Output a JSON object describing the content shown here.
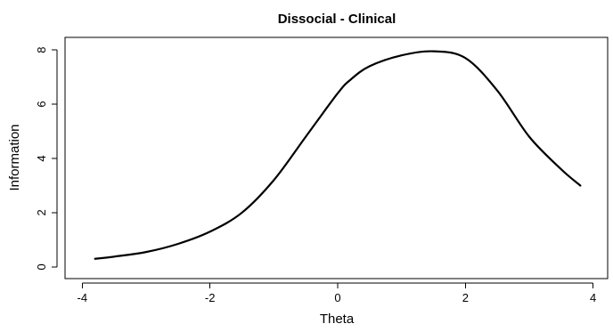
{
  "chart_data": {
    "type": "line",
    "title": "Dissocial - Clinical",
    "xlabel": "Theta",
    "ylabel": "Information",
    "xlim": [
      -4,
      4
    ],
    "ylim": [
      0,
      8
    ],
    "xticks": [
      -4,
      -2,
      0,
      2,
      4
    ],
    "yticks": [
      0,
      2,
      4,
      6,
      8
    ],
    "xtick_labels": [
      "-4",
      "-2",
      "0",
      "2",
      "4"
    ],
    "ytick_labels": [
      "0",
      "2",
      "4",
      "6",
      "8"
    ],
    "grid": false,
    "series": [
      {
        "color": "#000000",
        "x": [
          -3.8,
          -3.5,
          -3.0,
          -2.5,
          -2.0,
          -1.5,
          -1.0,
          -0.5,
          0.0,
          0.2,
          0.5,
          1.0,
          1.5,
          2.0,
          2.5,
          3.0,
          3.5,
          3.8
        ],
        "y": [
          0.3,
          0.38,
          0.55,
          0.85,
          1.3,
          2.0,
          3.2,
          4.8,
          6.4,
          6.9,
          7.4,
          7.8,
          7.95,
          7.7,
          6.5,
          4.8,
          3.6,
          3.0
        ]
      }
    ]
  }
}
